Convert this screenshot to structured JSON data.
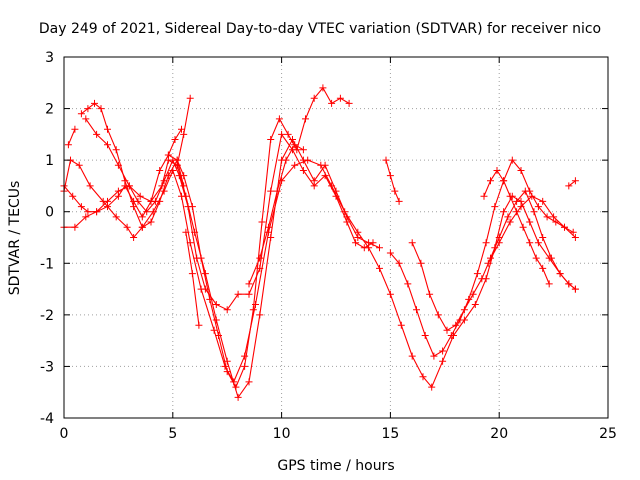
{
  "chart_data": {
    "type": "scatter",
    "title": "Day 249 of 2021, Sidereal Day-to-day VTEC variation (SDTVAR) for receiver nico",
    "xlabel": "GPS time / hours",
    "ylabel": "SDTVAR / TECUs",
    "xlim": [
      0,
      25
    ],
    "ylim": [
      -4,
      3
    ],
    "x_ticks": [
      0,
      5,
      10,
      15,
      20,
      25
    ],
    "y_ticks": [
      -4,
      -3,
      -2,
      -1,
      0,
      1,
      2,
      3
    ],
    "x_tick_labels": [
      "0",
      "5",
      "10",
      "15",
      "20",
      "25"
    ],
    "y_tick_labels": [
      "-4",
      "-3",
      "-2",
      "-1",
      "0",
      "1",
      "2",
      "3"
    ],
    "grid": true,
    "legend": "none",
    "marker": "plus",
    "color": "#ff0000",
    "series": [
      {
        "x": [
          0.0,
          0.3,
          0.7,
          1.2,
          1.8,
          2.4,
          2.9,
          3.2,
          3.6,
          4.1,
          4.6,
          5.0,
          5.4,
          5.8,
          6.3,
          6.9,
          7.4,
          7.8,
          8.3,
          8.8,
          9.4,
          10.0,
          10.6,
          11.2,
          11.8,
          12.3,
          12.9,
          13.5,
          14.0,
          14.5,
          15.0,
          15.5,
          16.0,
          16.5,
          16.9,
          17.4,
          17.9,
          18.4,
          18.9,
          19.4,
          19.8,
          20.2,
          20.6,
          21.0,
          21.4,
          21.8,
          22.3,
          22.8,
          23.2,
          23.5
        ],
        "y": [
          0.4,
          1.0,
          0.9,
          0.5,
          0.2,
          -0.1,
          -0.3,
          -0.5,
          -0.3,
          0.0,
          0.4,
          0.8,
          0.3,
          -0.6,
          -1.5,
          -2.3,
          -3.0,
          -3.3,
          -2.8,
          -1.8,
          -0.4,
          0.6,
          0.9,
          1.0,
          0.9,
          0.5,
          0.0,
          -0.4,
          -0.7,
          -1.1,
          -1.6,
          -2.2,
          -2.8,
          -3.2,
          -3.4,
          -2.9,
          -2.4,
          -2.1,
          -1.8,
          -1.3,
          -0.7,
          0.0,
          0.3,
          0.2,
          -0.2,
          -0.6,
          -0.9,
          -1.2,
          -1.4,
          -1.5
        ]
      },
      {
        "x": [
          0.0,
          0.5,
          1.0,
          1.5,
          2.0,
          2.5,
          3.0,
          3.5,
          4.0,
          4.5,
          4.8,
          5.2,
          5.6,
          6.0,
          6.5,
          7.0,
          7.5,
          8.0,
          8.5,
          9.0,
          9.5,
          10.0,
          10.5,
          11.0,
          11.5,
          12.0,
          12.5,
          13.0,
          13.5,
          14.0,
          14.5
        ],
        "y": [
          -0.3,
          -0.3,
          -0.1,
          0.0,
          0.2,
          0.4,
          0.5,
          0.3,
          0.2,
          0.5,
          1.0,
          0.9,
          0.3,
          -0.4,
          -1.2,
          -2.1,
          -2.9,
          -3.6,
          -3.3,
          -2.0,
          -0.5,
          1.0,
          1.4,
          1.0,
          0.6,
          0.9,
          0.4,
          -0.1,
          -0.5,
          -0.6,
          -0.7
        ]
      },
      {
        "x": [
          0.0,
          0.4,
          0.8,
          1.1,
          1.5,
          2.0,
          2.5,
          2.8,
          3.2,
          3.6,
          4.0,
          4.4,
          4.8,
          5.2,
          5.5
        ],
        "y": [
          0.5,
          0.3,
          0.1,
          0.0,
          0.0,
          0.1,
          0.3,
          0.5,
          0.2,
          -0.1,
          0.2,
          0.8,
          1.1,
          1.0,
          0.5
        ]
      },
      {
        "x": [
          0.2,
          0.5
        ],
        "y": [
          1.3,
          1.6
        ]
      },
      {
        "x": [
          0.8,
          1.1,
          1.4,
          1.7,
          2.0,
          2.4,
          2.8,
          3.2,
          3.6,
          4.0,
          4.4,
          4.8,
          5.2,
          5.5,
          5.9,
          6.3,
          6.7,
          7.1,
          7.5,
          7.9,
          8.3,
          8.7,
          9.1,
          9.5,
          9.9,
          10.3,
          10.7,
          11.1,
          11.5,
          11.9,
          12.3,
          12.7,
          13.1
        ],
        "y": [
          1.9,
          2.0,
          2.1,
          2.0,
          1.6,
          1.2,
          0.6,
          0.1,
          -0.3,
          -0.2,
          0.2,
          0.7,
          1.0,
          0.7,
          0.1,
          -0.9,
          -1.7,
          -2.4,
          -3.1,
          -3.4,
          -3.0,
          -1.9,
          -0.2,
          1.4,
          1.8,
          1.5,
          1.2,
          1.8,
          2.2,
          2.4,
          2.1,
          2.2,
          2.1
        ]
      },
      {
        "x": [
          1.0,
          1.5,
          2.0,
          2.5,
          3.0,
          3.4,
          3.8,
          4.2,
          4.6,
          5.0,
          5.3,
          5.7,
          6.1,
          6.5,
          7.0,
          7.5,
          8.0,
          8.5,
          9.0,
          9.5,
          10.0,
          10.5,
          11.0,
          11.5,
          12.0,
          12.5,
          13.0,
          13.4,
          13.8,
          14.2
        ],
        "y": [
          1.8,
          1.5,
          1.3,
          0.9,
          0.5,
          0.2,
          0.0,
          0.2,
          0.6,
          1.0,
          0.7,
          0.1,
          -0.9,
          -1.5,
          -1.8,
          -1.9,
          -1.6,
          -1.6,
          -1.1,
          0.4,
          1.5,
          1.2,
          0.8,
          0.5,
          0.7,
          0.3,
          -0.2,
          -0.6,
          -0.7,
          -0.6
        ]
      },
      {
        "x": [
          4.8,
          5.1,
          5.4
        ],
        "y": [
          1.1,
          1.4,
          1.6
        ]
      },
      {
        "x": [
          5.6,
          5.9,
          6.2
        ],
        "y": [
          -0.4,
          -1.2,
          -2.2
        ]
      },
      {
        "x": [
          5.2,
          5.5,
          5.8
        ],
        "y": [
          0.9,
          1.5,
          2.2
        ]
      },
      {
        "x": [
          8.5,
          9.0,
          9.4,
          9.8,
          10.2,
          10.6,
          11.0
        ],
        "y": [
          -1.4,
          -0.9,
          -0.3,
          0.4,
          1.0,
          1.3,
          1.2
        ]
      },
      {
        "x": [
          15.0,
          15.4,
          15.8,
          16.2,
          16.6,
          17.0,
          17.4,
          17.8,
          18.2,
          18.6,
          19.0,
          19.4,
          19.8,
          20.2,
          20.6,
          21.0,
          21.4,
          21.8,
          22.2,
          22.6,
          23.0,
          23.4
        ],
        "y": [
          -0.8,
          -1.0,
          -1.4,
          -1.9,
          -2.4,
          -2.8,
          -2.7,
          -2.4,
          -2.1,
          -1.7,
          -1.2,
          -0.6,
          0.1,
          0.6,
          1.0,
          0.8,
          0.4,
          0.1,
          -0.1,
          -0.2,
          -0.3,
          -0.4
        ]
      },
      {
        "x": [
          16.0,
          16.4,
          16.8,
          17.2,
          17.6,
          18.0,
          18.4,
          18.8,
          19.2,
          19.6,
          20.0,
          20.4,
          20.8,
          21.2,
          21.6,
          22.0,
          22.4,
          22.8,
          23.2,
          23.5
        ],
        "y": [
          -0.6,
          -1.0,
          -1.6,
          -2.0,
          -2.3,
          -2.2,
          -1.9,
          -1.6,
          -1.3,
          -0.9,
          -0.5,
          -0.1,
          0.2,
          0.4,
          0.0,
          -0.5,
          -0.9,
          -1.2,
          -1.4,
          -1.5
        ]
      },
      {
        "x": [
          14.8,
          15.0,
          15.2,
          15.4
        ],
        "y": [
          1.0,
          0.7,
          0.4,
          0.2
        ]
      },
      {
        "x": [
          19.3,
          19.6,
          19.9,
          20.2,
          20.5,
          20.8,
          21.1,
          21.4,
          21.7,
          22.0,
          22.3
        ],
        "y": [
          0.3,
          0.6,
          0.8,
          0.6,
          0.3,
          0.0,
          -0.3,
          -0.6,
          -0.9,
          -1.1,
          -1.4
        ]
      },
      {
        "x": [
          19.5,
          20.0,
          20.5,
          21.0,
          21.5,
          22.0,
          22.5,
          23.0,
          23.5
        ],
        "y": [
          -1.0,
          -0.6,
          -0.2,
          0.1,
          0.3,
          0.2,
          -0.1,
          -0.3,
          -0.5
        ]
      },
      {
        "x": [
          23.2,
          23.5
        ],
        "y": [
          0.5,
          0.6
        ]
      }
    ]
  }
}
